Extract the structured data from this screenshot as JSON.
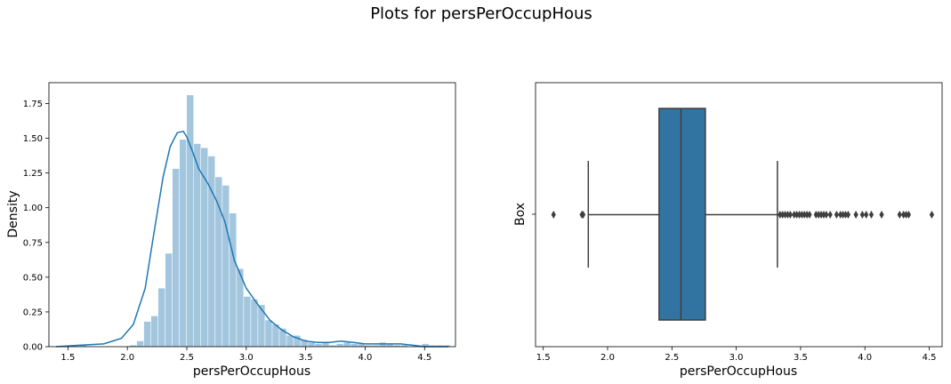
{
  "figure": {
    "title": "Plots for persPerOccupHous"
  },
  "chart_data": [
    {
      "type": "histogram",
      "xlabel": "persPerOccupHous",
      "ylabel": "Density",
      "xlim": [
        1.34,
        4.76
      ],
      "ylim": [
        0,
        1.9
      ],
      "xticks": [
        "1.5",
        "2.0",
        "2.5",
        "3.0",
        "3.5",
        "4.0",
        "4.5"
      ],
      "yticks": [
        "0.00",
        "0.25",
        "0.50",
        "0.75",
        "1.00",
        "1.25",
        "1.50",
        "1.75"
      ],
      "bin_start": 1.6,
      "bin_width": 0.06,
      "bin_values": [
        0.01,
        0,
        0,
        0,
        0,
        0,
        0,
        0.01,
        0.04,
        0.18,
        0.22,
        0.42,
        0.67,
        1.28,
        1.49,
        1.81,
        1.46,
        1.43,
        1.37,
        1.22,
        1.16,
        0.96,
        0.56,
        0.36,
        0.34,
        0.3,
        0.19,
        0.16,
        0.13,
        0.08,
        0.08,
        0.05,
        0.03,
        0.02,
        0.03,
        0.01,
        0.02,
        0.03,
        0.02,
        0.02,
        0.01,
        0.01,
        0.03,
        0.02,
        0.01,
        0.01,
        0.0,
        0.0,
        0.02,
        0.01,
        0.01,
        0.01
      ],
      "kde_x": [
        1.4,
        1.6,
        1.8,
        1.95,
        2.05,
        2.15,
        2.22,
        2.3,
        2.36,
        2.42,
        2.47,
        2.5,
        2.55,
        2.6,
        2.68,
        2.75,
        2.82,
        2.9,
        3.0,
        3.1,
        3.2,
        3.3,
        3.4,
        3.5,
        3.6,
        3.7,
        3.8,
        3.9,
        4.0,
        4.1,
        4.2,
        4.3,
        4.4,
        4.5,
        4.7
      ],
      "kde_y": [
        0.0,
        0.01,
        0.02,
        0.06,
        0.16,
        0.42,
        0.8,
        1.22,
        1.44,
        1.54,
        1.55,
        1.51,
        1.4,
        1.28,
        1.17,
        1.05,
        0.9,
        0.62,
        0.42,
        0.3,
        0.19,
        0.12,
        0.07,
        0.04,
        0.03,
        0.03,
        0.04,
        0.03,
        0.02,
        0.02,
        0.02,
        0.02,
        0.01,
        0.0,
        0.0
      ],
      "bar_color": "#a3c6df",
      "line_color": "#1f77b4"
    },
    {
      "type": "box",
      "xlabel": "persPerOccupHous",
      "ylabel": "Box",
      "xlim": [
        1.44,
        4.6
      ],
      "xticks": [
        "1.5",
        "2.0",
        "2.5",
        "3.0",
        "3.5",
        "4.0",
        "4.5"
      ],
      "whisker_low": 1.85,
      "q1": 2.4,
      "median": 2.57,
      "q3": 2.76,
      "whisker_high": 3.32,
      "outliers": [
        1.58,
        1.8,
        1.81,
        3.34,
        3.36,
        3.38,
        3.4,
        3.42,
        3.45,
        3.47,
        3.49,
        3.51,
        3.53,
        3.55,
        3.57,
        3.62,
        3.64,
        3.66,
        3.68,
        3.7,
        3.73,
        3.78,
        3.81,
        3.83,
        3.85,
        3.87,
        3.93,
        3.98,
        4.01,
        4.05,
        4.13,
        4.27,
        4.3,
        4.32,
        4.34,
        4.52
      ],
      "box_color": "#3274a1",
      "line_color": "#3f3f3f"
    }
  ]
}
